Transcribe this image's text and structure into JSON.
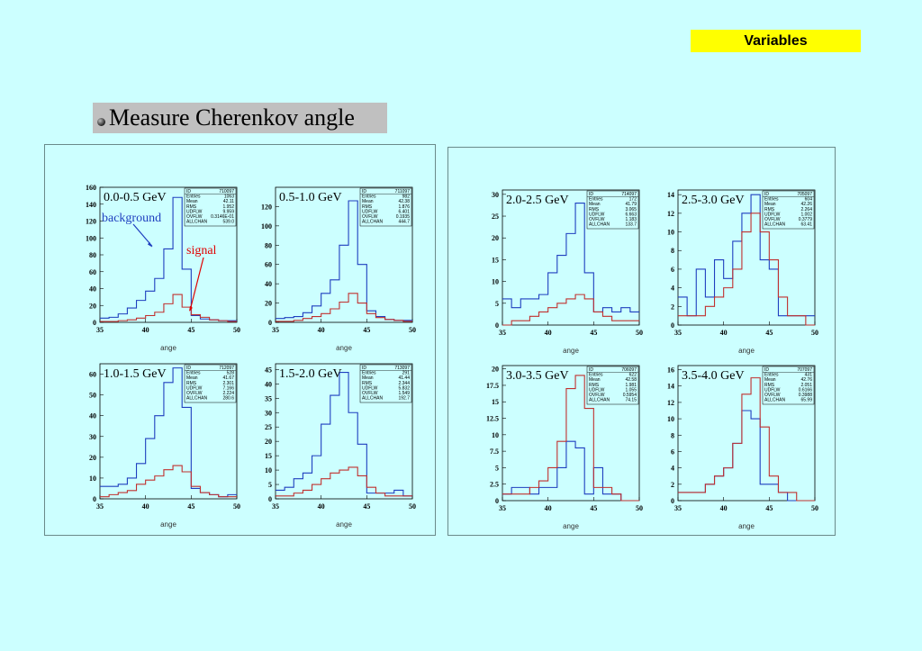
{
  "slide": {
    "tag": "Variables",
    "heading": "Measure Cherenkov angle"
  },
  "colors": {
    "background": "#ccffff",
    "series_background": "#1f3fbf",
    "series_signal": "#c0302f",
    "tag": "#ffff00"
  },
  "chart_data": [
    {
      "type": "bar",
      "label": "0.0-0.5 GeV",
      "xlabel": "ange",
      "xlim": [
        35,
        50
      ],
      "ylim": [
        0,
        160
      ],
      "yticks": [
        "0",
        "20",
        "40",
        "60",
        "80",
        "100",
        "120",
        "140",
        "160"
      ],
      "xticks": [
        "35",
        "40",
        "45",
        "50"
      ],
      "annotations": [
        {
          "text": "background",
          "color": "#1f3fbf"
        },
        {
          "text": "signal",
          "color": "#e00000"
        }
      ],
      "stats": [
        [
          "ID",
          "710097"
        ],
        [
          "Entries",
          "1063"
        ],
        [
          "Mean",
          "42.11"
        ],
        [
          "RMS",
          "1.952"
        ],
        [
          "UDFLW",
          "9.959"
        ],
        [
          "OVFLW",
          "0.3146E-01"
        ],
        [
          "ALLCHAN",
          "539.0"
        ]
      ],
      "bins": [
        35,
        36,
        37,
        38,
        39,
        40,
        41,
        42,
        43,
        44,
        45,
        46,
        47,
        48,
        49
      ],
      "series": [
        {
          "values": [
            5,
            6,
            10,
            17,
            26,
            37,
            52,
            87,
            148,
            63,
            8,
            4,
            3,
            2,
            2
          ]
        },
        {
          "values": [
            1,
            1,
            2,
            3,
            5,
            8,
            12,
            22,
            33,
            18,
            9,
            6,
            3,
            2,
            1
          ]
        }
      ]
    },
    {
      "type": "bar",
      "label": "0.5-1.0 GeV",
      "xlabel": "ange",
      "xlim": [
        35,
        50
      ],
      "ylim": [
        0,
        140
      ],
      "yticks": [
        "0",
        "20",
        "40",
        "60",
        "80",
        "100",
        "120"
      ],
      "xticks": [
        "35",
        "40",
        "45",
        "50"
      ],
      "stats": [
        [
          "ID",
          "711097"
        ],
        [
          "Entries",
          "982"
        ],
        [
          "Mean",
          "42.38"
        ],
        [
          "RMS",
          "1.876"
        ],
        [
          "UDFLW",
          "6.401"
        ],
        [
          "OVFLW",
          "0.1935"
        ],
        [
          "ALLCHAN",
          "444.7"
        ]
      ],
      "bins": [
        35,
        36,
        37,
        38,
        39,
        40,
        41,
        42,
        43,
        44,
        45,
        46,
        47,
        48,
        49
      ],
      "series": [
        {
          "values": [
            4,
            5,
            6,
            10,
            17,
            30,
            44,
            80,
            126,
            60,
            12,
            6,
            3,
            2,
            2
          ]
        },
        {
          "values": [
            1,
            1,
            2,
            4,
            6,
            9,
            14,
            21,
            30,
            20,
            9,
            5,
            3,
            2,
            1
          ]
        }
      ]
    },
    {
      "type": "bar",
      "label": "2.0-2.5 GeV",
      "xlabel": "ange",
      "xlim": [
        35,
        50
      ],
      "ylim": [
        0,
        31
      ],
      "yticks": [
        "0",
        "5",
        "10",
        "15",
        "20",
        "25",
        "30"
      ],
      "xticks": [
        "35",
        "40",
        "45",
        "50"
      ],
      "stats": [
        [
          "ID",
          "714097"
        ],
        [
          "Entries",
          "172"
        ],
        [
          "Mean",
          "41.79"
        ],
        [
          "RMS",
          "3.065"
        ],
        [
          "UDFLW",
          "6.663"
        ],
        [
          "OVFLW",
          "1.183"
        ],
        [
          "ALLCHAN",
          "133.7"
        ]
      ],
      "bins": [
        35,
        36,
        37,
        38,
        39,
        40,
        41,
        42,
        43,
        44,
        45,
        46,
        47,
        48,
        49
      ],
      "series": [
        {
          "values": [
            6,
            4,
            6,
            6,
            7,
            12,
            16,
            21,
            28,
            12,
            3,
            4,
            3,
            4,
            3
          ]
        },
        {
          "values": [
            0,
            1,
            1,
            2,
            3,
            4,
            5,
            6,
            7,
            6,
            3,
            2,
            1,
            1,
            1
          ]
        }
      ]
    },
    {
      "type": "bar",
      "label": "2.5-3.0 GeV",
      "xlabel": "ange",
      "xlim": [
        35,
        50
      ],
      "ylim": [
        0,
        14.5
      ],
      "yticks": [
        "0",
        "2",
        "4",
        "6",
        "8",
        "10",
        "12",
        "14"
      ],
      "xticks": [
        "35",
        "40",
        "45",
        "50"
      ],
      "stats": [
        [
          "ID",
          "705097"
        ],
        [
          "Entries",
          "604"
        ],
        [
          "Mean",
          "42.26"
        ],
        [
          "RMS",
          "2.264"
        ],
        [
          "UDFLW",
          "1.002"
        ],
        [
          "OVFLW",
          "0.3779"
        ],
        [
          "ALLCHAN",
          "63.41"
        ]
      ],
      "bins": [
        35,
        36,
        37,
        38,
        39,
        40,
        41,
        42,
        43,
        44,
        45,
        46,
        47,
        48,
        49
      ],
      "series": [
        {
          "values": [
            3,
            1,
            6,
            3,
            7,
            5,
            9,
            12,
            14,
            7,
            6,
            1,
            1,
            1,
            1
          ]
        },
        {
          "values": [
            1,
            1,
            1,
            2,
            3,
            4,
            6,
            10,
            12,
            10,
            7,
            3,
            1,
            1,
            0
          ]
        }
      ]
    },
    {
      "type": "bar",
      "label": "1.0-1.5 GeV",
      "xlabel": "ange",
      "xlim": [
        35,
        50
      ],
      "ylim": [
        0,
        65
      ],
      "yticks": [
        "0",
        "10",
        "20",
        "30",
        "40",
        "50",
        "60"
      ],
      "xticks": [
        "35",
        "40",
        "45",
        "50"
      ],
      "stats": [
        [
          "ID",
          "712097"
        ],
        [
          "Entries",
          "528"
        ],
        [
          "Mean",
          "41.67"
        ],
        [
          "RMS",
          "2.301"
        ],
        [
          "UDFLW",
          "7.166"
        ],
        [
          "OVFLW",
          "2.224"
        ],
        [
          "ALLCHAN",
          "280.6"
        ]
      ],
      "bins": [
        35,
        36,
        37,
        38,
        39,
        40,
        41,
        42,
        43,
        44,
        45,
        46,
        47,
        48,
        49
      ],
      "series": [
        {
          "values": [
            6,
            6,
            7,
            10,
            17,
            29,
            40,
            56,
            63,
            44,
            5,
            3,
            2,
            1,
            2
          ]
        },
        {
          "values": [
            1,
            2,
            3,
            4,
            7,
            9,
            11,
            14,
            16,
            13,
            6,
            3,
            2,
            1,
            1
          ]
        }
      ]
    },
    {
      "type": "bar",
      "label": "1.5-2.0 GeV",
      "xlabel": "ange",
      "xlim": [
        35,
        50
      ],
      "ylim": [
        0,
        47
      ],
      "yticks": [
        "0",
        "5",
        "10",
        "15",
        "20",
        "25",
        "30",
        "35",
        "40",
        "45"
      ],
      "xticks": [
        "35",
        "40",
        "45",
        "50"
      ],
      "stats": [
        [
          "ID",
          "713097"
        ],
        [
          "Entries",
          "291"
        ],
        [
          "Mean",
          "41.44"
        ],
        [
          "RMS",
          "2.344"
        ],
        [
          "UDFLW",
          "5.832"
        ],
        [
          "OVFLW",
          "1.549"
        ],
        [
          "ALLCHAN",
          "192.7"
        ]
      ],
      "bins": [
        35,
        36,
        37,
        38,
        39,
        40,
        41,
        42,
        43,
        44,
        45,
        46,
        47,
        48,
        49
      ],
      "series": [
        {
          "values": [
            3,
            4,
            7,
            9,
            15,
            26,
            36,
            44,
            30,
            19,
            2,
            2,
            2,
            3,
            1
          ]
        },
        {
          "values": [
            1,
            1,
            2,
            3,
            5,
            7,
            9,
            10,
            11,
            8,
            4,
            2,
            1,
            1,
            1
          ]
        }
      ]
    },
    {
      "type": "bar",
      "label": "3.0-3.5 GeV",
      "xlabel": "ange",
      "xlim": [
        35,
        50
      ],
      "ylim": [
        0,
        20.5
      ],
      "yticks": [
        "0",
        "2.5",
        "5",
        "7.5",
        "10",
        "12.5",
        "15",
        "17.5",
        "20"
      ],
      "xticks": [
        "35",
        "40",
        "45",
        "50"
      ],
      "stats": [
        [
          "ID",
          "706097"
        ],
        [
          "Entries",
          "622"
        ],
        [
          "Mean",
          "42.58"
        ],
        [
          "RMS",
          "1.981"
        ],
        [
          "UDFLW",
          "1.055"
        ],
        [
          "OVFLW",
          "0.5954"
        ],
        [
          "ALLCHAN",
          "74.15"
        ]
      ],
      "bins": [
        35,
        36,
        37,
        38,
        39,
        40,
        41,
        42,
        43,
        44,
        45,
        46,
        47,
        48,
        49
      ],
      "series": [
        {
          "values": [
            1,
            2,
            2,
            1,
            2,
            2,
            5,
            9,
            8,
            1,
            5,
            1,
            1,
            0,
            0
          ]
        },
        {
          "values": [
            1,
            1,
            1,
            2,
            3,
            5,
            9,
            17,
            19,
            14,
            2,
            2,
            1,
            0,
            0
          ]
        }
      ]
    },
    {
      "type": "bar",
      "label": "3.5-4.0 GeV",
      "xlabel": "ange",
      "xlim": [
        35,
        50
      ],
      "ylim": [
        0,
        16.5
      ],
      "yticks": [
        "0",
        "2",
        "4",
        "6",
        "8",
        "10",
        "12",
        "14",
        "16"
      ],
      "xticks": [
        "35",
        "40",
        "45",
        "50"
      ],
      "stats": [
        [
          "ID",
          "707097"
        ],
        [
          "Entries",
          "431"
        ],
        [
          "Mean",
          "42.76"
        ],
        [
          "RMS",
          "2.051"
        ],
        [
          "UDFLW",
          "0.6166"
        ],
        [
          "OVFLW",
          "0.3988"
        ],
        [
          "ALLCHAN",
          "65.99"
        ]
      ],
      "bins": [
        35,
        36,
        37,
        38,
        39,
        40,
        41,
        42,
        43,
        44,
        45,
        46,
        47,
        48,
        49
      ],
      "series": [
        {
          "values": [
            1,
            1,
            1,
            2,
            3,
            4,
            7,
            11,
            10,
            2,
            2,
            1,
            0,
            0,
            0
          ]
        },
        {
          "values": [
            1,
            1,
            1,
            2,
            3,
            4,
            7,
            13,
            15,
            9,
            3,
            1,
            1,
            0,
            0
          ]
        }
      ]
    }
  ]
}
